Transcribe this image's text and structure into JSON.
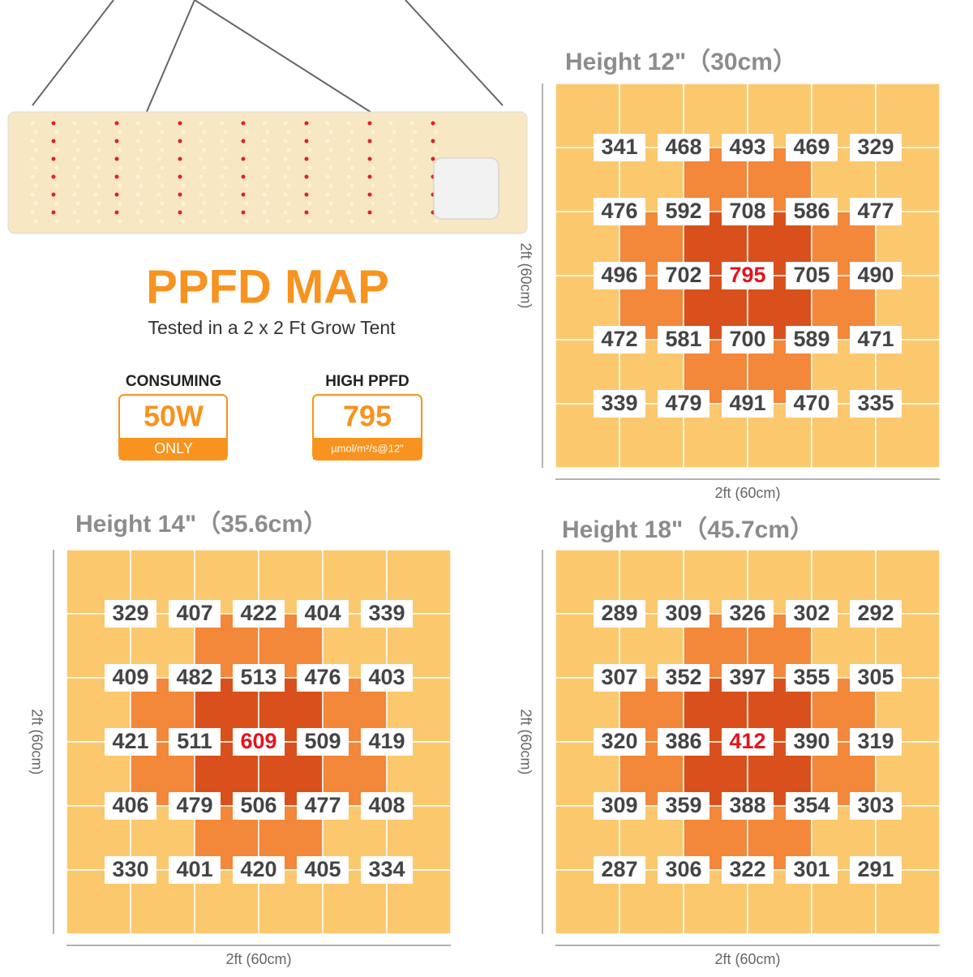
{
  "header": {
    "title": "PPFD MAP",
    "subtitle": "Tested in a 2 x 2 Ft Grow Tent"
  },
  "badges": [
    {
      "label": "CONSUMING",
      "value": "50W",
      "note": "ONLY"
    },
    {
      "label": "HIGH PPFD",
      "value": "795",
      "note": "µmol/m²/s@12\""
    }
  ],
  "maps": [
    {
      "title": "Height 12\"（30cm）",
      "side_label": "2ft (60cm)",
      "bottom_label": "2ft (60cm)",
      "values": [
        [
          341,
          468,
          493,
          469,
          329
        ],
        [
          476,
          592,
          708,
          586,
          477
        ],
        [
          496,
          702,
          795,
          705,
          490
        ],
        [
          472,
          581,
          700,
          589,
          471
        ],
        [
          339,
          479,
          491,
          470,
          335
        ]
      ]
    },
    {
      "title": "Height 14\"（35.6cm）",
      "side_label": "2ft (60cm)",
      "bottom_label": "2ft (60cm)",
      "values": [
        [
          329,
          407,
          422,
          404,
          339
        ],
        [
          409,
          482,
          513,
          476,
          403
        ],
        [
          421,
          511,
          609,
          509,
          419
        ],
        [
          406,
          479,
          506,
          477,
          408
        ],
        [
          330,
          401,
          420,
          405,
          334
        ]
      ]
    },
    {
      "title": "Height 18\"（45.7cm）",
      "side_label": "2ft (60cm)",
      "bottom_label": "2ft (60cm)",
      "values": [
        [
          289,
          309,
          326,
          302,
          292
        ],
        [
          307,
          352,
          397,
          355,
          305
        ],
        [
          320,
          386,
          412,
          390,
          319
        ],
        [
          309,
          359,
          388,
          354,
          303
        ],
        [
          287,
          306,
          322,
          301,
          291
        ]
      ]
    }
  ]
}
